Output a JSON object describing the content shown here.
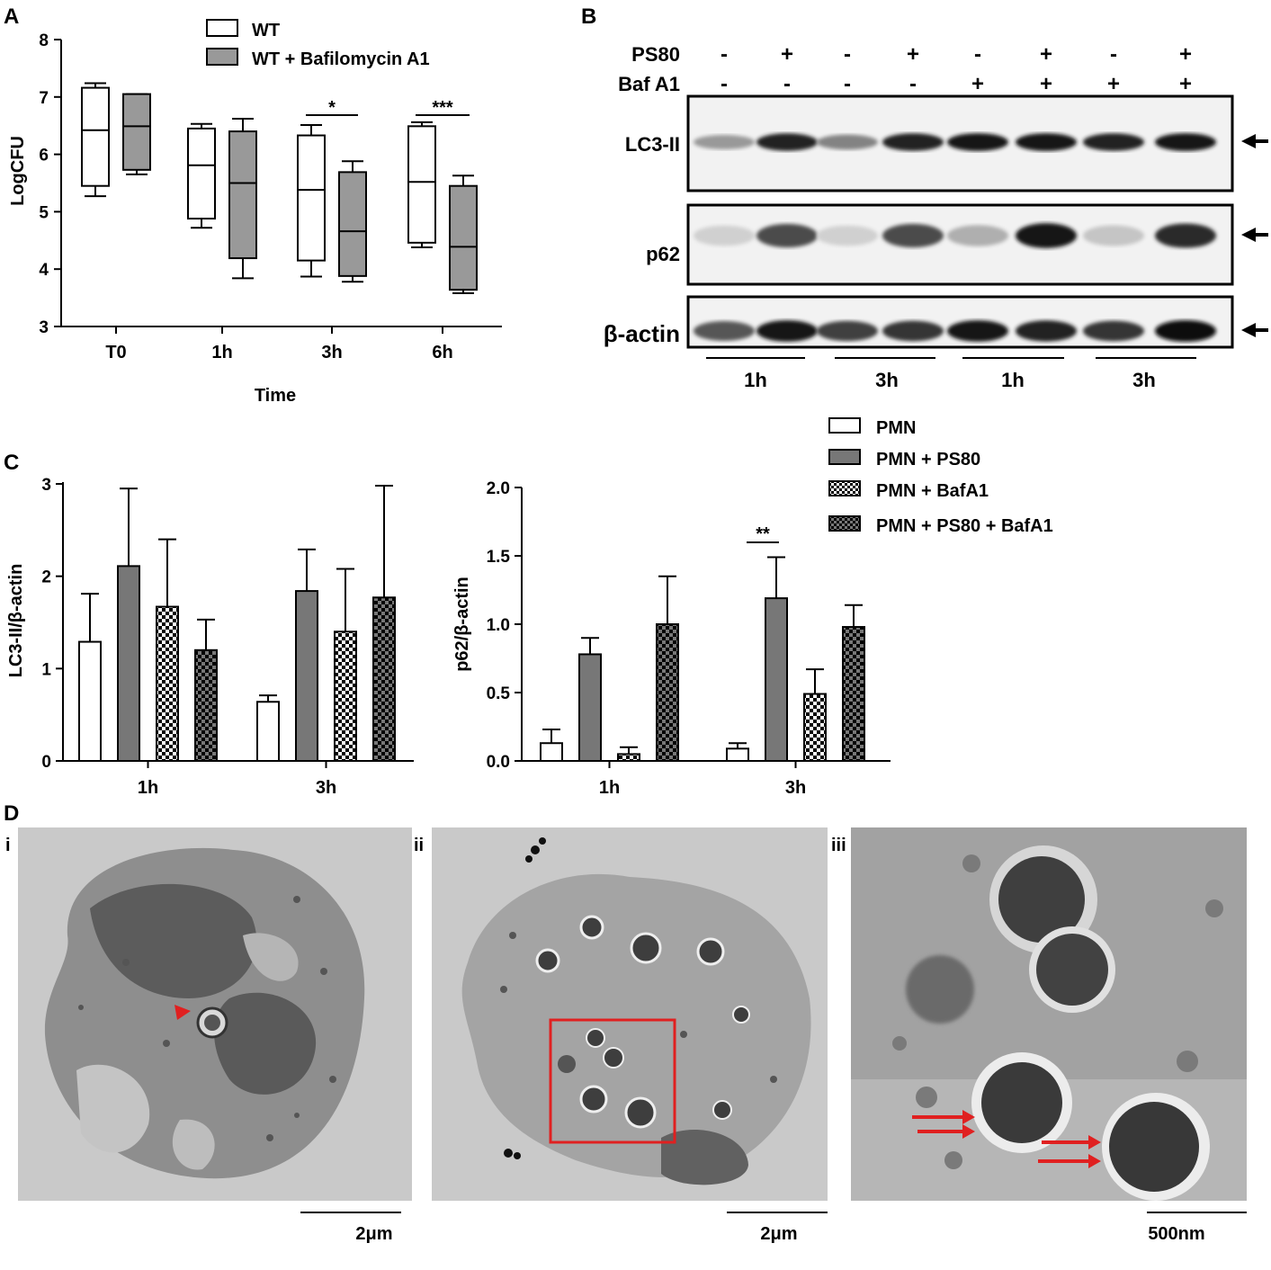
{
  "panels": {
    "A": "A",
    "B": "B",
    "C": "C",
    "D": "D"
  },
  "chart_data": [
    {
      "panel": "A",
      "type": "box",
      "ylabel": "LogCFU",
      "xlabel": "Time",
      "ylim": [
        3,
        8
      ],
      "yticks": [
        "3",
        "4",
        "5",
        "6",
        "7",
        "8"
      ],
      "categories": [
        "T0",
        "1h",
        "3h",
        "6h"
      ],
      "legend": [
        "WT",
        "WT + Bafilomycin A1"
      ],
      "series": [
        {
          "name": "WT",
          "color": "#ffffff",
          "boxes": [
            {
              "min": 5.27,
              "q1": 5.45,
              "median": 6.42,
              "q3": 7.16,
              "max": 7.24
            },
            {
              "min": 4.72,
              "q1": 4.88,
              "median": 5.81,
              "q3": 6.45,
              "max": 6.53
            },
            {
              "min": 3.87,
              "q1": 4.15,
              "median": 5.38,
              "q3": 6.33,
              "max": 6.51
            },
            {
              "min": 4.38,
              "q1": 4.46,
              "median": 5.52,
              "q3": 6.49,
              "max": 6.56
            }
          ]
        },
        {
          "name": "WT + Bafilomycin A1",
          "color": "#999999",
          "boxes": [
            {
              "min": 5.65,
              "q1": 5.73,
              "median": 6.49,
              "q3": 7.05,
              "max": 7.05
            },
            {
              "min": 3.84,
              "q1": 4.19,
              "median": 5.5,
              "q3": 6.4,
              "max": 6.62
            },
            {
              "min": 3.78,
              "q1": 3.88,
              "median": 4.66,
              "q3": 5.69,
              "max": 5.88
            },
            {
              "min": 3.58,
              "q1": 3.64,
              "median": 4.39,
              "q3": 5.45,
              "max": 5.63
            }
          ]
        }
      ],
      "significance": [
        {
          "category": "3h",
          "label": "*"
        },
        {
          "category": "6h",
          "label": "***"
        }
      ]
    },
    {
      "panel": "C-left",
      "type": "bar",
      "ylabel": "LC3-II/β-actin",
      "ylim": [
        0,
        3
      ],
      "yticks": [
        "0",
        "1",
        "2",
        "3"
      ],
      "categories": [
        "1h",
        "3h"
      ],
      "series": [
        {
          "name": "PMN",
          "pattern": "white",
          "values": [
            1.29,
            0.64
          ],
          "errors": [
            0.52,
            0.07
          ]
        },
        {
          "name": "PMN + PS80",
          "pattern": "gray",
          "values": [
            2.11,
            1.84
          ],
          "errors": [
            0.84,
            0.45
          ]
        },
        {
          "name": "PMN + BafA1",
          "pattern": "check-light",
          "values": [
            1.67,
            1.4
          ],
          "errors": [
            0.73,
            0.68
          ]
        },
        {
          "name": "PMN + PS80 + BafA1",
          "pattern": "check-dark",
          "values": [
            1.2,
            1.77
          ],
          "errors": [
            0.33,
            1.21
          ]
        }
      ]
    },
    {
      "panel": "C-right",
      "type": "bar",
      "ylabel": "p62/β-actin",
      "ylim": [
        0,
        2
      ],
      "yticks": [
        "0.0",
        "0.5",
        "1.0",
        "1.5",
        "2.0"
      ],
      "categories": [
        "1h",
        "3h"
      ],
      "series": [
        {
          "name": "PMN",
          "pattern": "white",
          "values": [
            0.13,
            0.09
          ],
          "errors": [
            0.1,
            0.04
          ]
        },
        {
          "name": "PMN + PS80",
          "pattern": "gray",
          "values": [
            0.78,
            1.19
          ],
          "errors": [
            0.12,
            0.3
          ]
        },
        {
          "name": "PMN + BafA1",
          "pattern": "check-light",
          "values": [
            0.05,
            0.49
          ],
          "errors": [
            0.05,
            0.18
          ]
        },
        {
          "name": "PMN + PS80 + BafA1",
          "pattern": "check-dark",
          "values": [
            1.0,
            0.98
          ],
          "errors": [
            0.35,
            0.16
          ]
        }
      ],
      "significance": [
        {
          "category": "3h",
          "label": "**"
        }
      ]
    }
  ],
  "blot": {
    "rows": [
      {
        "label": "PS80",
        "values": [
          "-",
          "+",
          "-",
          "+",
          "-",
          "+",
          "-",
          "+"
        ]
      },
      {
        "label": "Baf A1",
        "values": [
          "-",
          "-",
          "-",
          "-",
          "+",
          "+",
          "+",
          "+"
        ]
      }
    ],
    "bands": [
      {
        "label": "LC3-II",
        "intensity": [
          0.35,
          0.9,
          0.45,
          0.9,
          0.95,
          0.95,
          0.9,
          0.95
        ]
      },
      {
        "label": "p62",
        "intensity": [
          0.1,
          0.7,
          0.1,
          0.7,
          0.25,
          0.95,
          0.15,
          0.85
        ]
      },
      {
        "label": "β-actin",
        "intensity": [
          0.65,
          0.95,
          0.75,
          0.8,
          0.95,
          0.9,
          0.8,
          1.0
        ]
      }
    ],
    "groups": [
      "1h",
      "3h",
      "1h",
      "3h"
    ]
  },
  "c_legend": [
    "PMN",
    "PMN + PS80",
    "PMN + BafA1",
    "PMN + PS80 + BafA1"
  ],
  "micrographs": {
    "labels": [
      "i",
      "ii",
      "iii"
    ],
    "scale_bars": [
      "2μm",
      "2μm",
      "500nm"
    ]
  }
}
